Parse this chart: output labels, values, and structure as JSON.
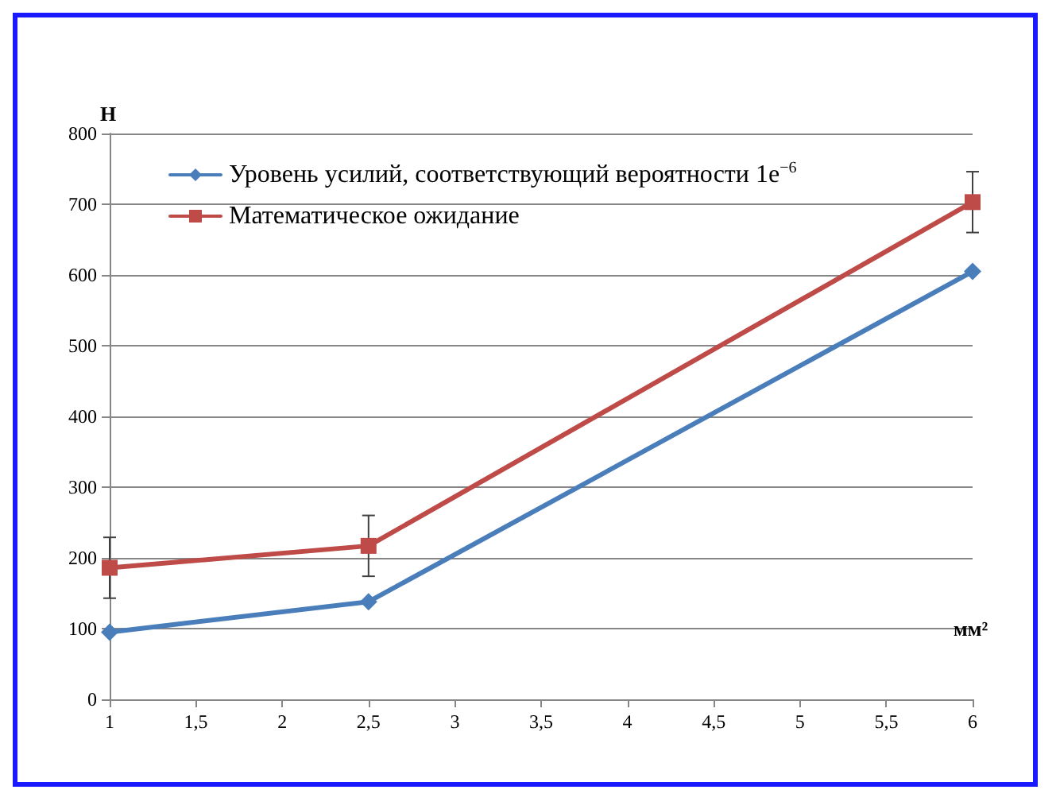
{
  "chart_data": {
    "type": "line",
    "xlabel": "мм²",
    "ylabel": "Н",
    "x": [
      1,
      2.5,
      6
    ],
    "xlim": [
      1,
      6
    ],
    "xticks": [
      1,
      {
        "value": 1.5,
        "label": "1,5"
      },
      2,
      {
        "value": 2.5,
        "label": "2,5"
      },
      3,
      {
        "value": 3.5,
        "label": "3,5"
      },
      4,
      {
        "value": 4.5,
        "label": "4,5"
      },
      5,
      {
        "value": 5.5,
        "label": "5,5"
      },
      6
    ],
    "ylim": [
      0,
      800
    ],
    "yticks": [
      0,
      100,
      200,
      300,
      400,
      500,
      600,
      700,
      800
    ],
    "grid": "y",
    "legend": "top left",
    "line_style": "solid",
    "series": [
      {
        "name": "Уровень усилий, соответствующий вероятности 1e$^{−6}$",
        "color": "#4a7ebb",
        "marker": "diamond",
        "values": [
          95,
          138,
          605
        ]
      },
      {
        "name": "Математическое ожидание",
        "color": "#be4b48",
        "marker": "square",
        "values": [
          186,
          217,
          703
        ],
        "errors": [
          43,
          43,
          43
        ]
      }
    ]
  }
}
